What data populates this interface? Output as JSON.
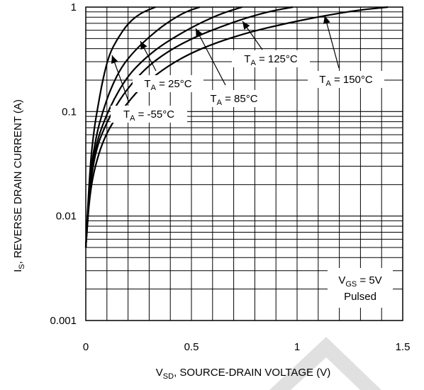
{
  "chart_data": {
    "type": "line",
    "x_scale": "linear",
    "y_scale": "log",
    "xlim": [
      0,
      1.5
    ],
    "ylim": [
      0.001,
      1
    ],
    "grid": true,
    "x_ticks": [
      "0",
      "0.5",
      "1",
      "1.5"
    ],
    "x_tick_values": [
      0,
      0.5,
      1,
      1.5
    ],
    "y_ticks": [
      "0.001",
      "0.01",
      "0.1",
      "1"
    ],
    "y_tick_values": [
      0.001,
      0.01,
      0.1,
      1
    ],
    "ylabel": {
      "main": "I",
      "sub": "S",
      "rest": ", REVERSE DRAIN CURRENT (A)"
    },
    "xlabel": {
      "main": "V",
      "sub": "SD",
      "rest": ", SOURCE-DRAIN VOLTAGE (V)"
    },
    "series": [
      {
        "name": "TA = -55°C",
        "x": [
          0,
          0.02,
          0.04,
          0.06,
          0.08,
          0.11,
          0.15,
          0.2,
          0.26,
          0.33
        ],
        "y": [
          0.005,
          0.03,
          0.07,
          0.12,
          0.2,
          0.35,
          0.5,
          0.7,
          0.88,
          1.0
        ]
      },
      {
        "name": "TA = 25°C",
        "x": [
          0,
          0.02,
          0.05,
          0.08,
          0.12,
          0.17,
          0.23,
          0.3,
          0.38,
          0.47,
          0.54
        ],
        "y": [
          0.005,
          0.025,
          0.06,
          0.1,
          0.17,
          0.27,
          0.38,
          0.52,
          0.7,
          0.9,
          1.0
        ]
      },
      {
        "name": "TA = 85°C",
        "x": [
          0,
          0.02,
          0.05,
          0.09,
          0.14,
          0.2,
          0.27,
          0.35,
          0.45,
          0.55,
          0.65,
          0.74
        ],
        "y": [
          0.005,
          0.022,
          0.05,
          0.085,
          0.14,
          0.22,
          0.31,
          0.42,
          0.56,
          0.72,
          0.88,
          1.0
        ]
      },
      {
        "name": "TA = 125°C",
        "x": [
          0,
          0.02,
          0.05,
          0.1,
          0.16,
          0.23,
          0.31,
          0.41,
          0.52,
          0.64,
          0.76,
          0.88,
          0.98
        ],
        "y": [
          0.005,
          0.02,
          0.045,
          0.08,
          0.13,
          0.2,
          0.29,
          0.4,
          0.52,
          0.65,
          0.79,
          0.92,
          1.0
        ]
      },
      {
        "name": "TA = 150°C",
        "x": [
          0,
          0.02,
          0.06,
          0.11,
          0.18,
          0.26,
          0.36,
          0.48,
          0.62,
          0.78,
          0.95,
          1.12,
          1.28,
          1.43
        ],
        "y": [
          0.005,
          0.018,
          0.04,
          0.07,
          0.11,
          0.17,
          0.25,
          0.35,
          0.46,
          0.58,
          0.7,
          0.82,
          0.93,
          1.0
        ]
      }
    ],
    "annotations": [
      {
        "main": "T",
        "sub": "A",
        "rest": " = -55°C"
      },
      {
        "main": "T",
        "sub": "A",
        "rest": " = 25°C"
      },
      {
        "main": "T",
        "sub": "A",
        "rest": " = 85°C"
      },
      {
        "main": "T",
        "sub": "A",
        "rest": " = 125°C"
      },
      {
        "main": "T",
        "sub": "A",
        "rest": " = 150°C"
      }
    ],
    "condition": {
      "main": "V",
      "sub": "GS",
      "rest": " = 5V",
      "line2": "Pulsed"
    }
  }
}
